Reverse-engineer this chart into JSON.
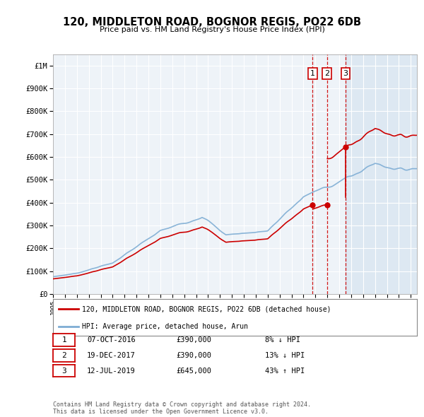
{
  "title": "120, MIDDLETON ROAD, BOGNOR REGIS, PO22 6DB",
  "subtitle": "Price paid vs. HM Land Registry's House Price Index (HPI)",
  "ylabel_ticks": [
    "£0",
    "£100K",
    "£200K",
    "£300K",
    "£400K",
    "£500K",
    "£600K",
    "£700K",
    "£800K",
    "£900K",
    "£1M"
  ],
  "ytick_values": [
    0,
    100000,
    200000,
    300000,
    400000,
    500000,
    600000,
    700000,
    800000,
    900000,
    1000000
  ],
  "ylim": [
    0,
    1050000
  ],
  "xlim_start": 1995.0,
  "xlim_end": 2025.5,
  "hpi_color": "#7eadd4",
  "price_color": "#cc0000",
  "vline_color": "#cc0000",
  "transactions": [
    {
      "date": 2016.77,
      "price": 390000,
      "label": "1"
    },
    {
      "date": 2017.97,
      "price": 390000,
      "label": "2"
    },
    {
      "date": 2019.53,
      "price": 645000,
      "label": "3"
    }
  ],
  "vline_dates": [
    2016.77,
    2017.97,
    2019.53
  ],
  "legend_price_label": "120, MIDDLETON ROAD, BOGNOR REGIS, PO22 6DB (detached house)",
  "legend_hpi_label": "HPI: Average price, detached house, Arun",
  "table_rows": [
    {
      "num": "1",
      "date": "07-OCT-2016",
      "price": "£390,000",
      "change": "8% ↓ HPI"
    },
    {
      "num": "2",
      "date": "19-DEC-2017",
      "price": "£390,000",
      "change": "13% ↓ HPI"
    },
    {
      "num": "3",
      "date": "12-JUL-2019",
      "price": "£645,000",
      "change": "43% ↑ HPI"
    }
  ],
  "footnote": "Contains HM Land Registry data © Crown copyright and database right 2024.\nThis data is licensed under the Open Government Licence v3.0.",
  "background_color": "#ffffff",
  "plot_bg_color": "#eef3f8",
  "grid_color": "#ffffff"
}
